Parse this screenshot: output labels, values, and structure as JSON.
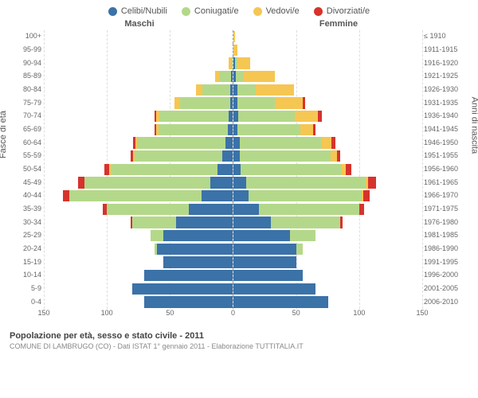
{
  "legend": [
    {
      "label": "Celibi/Nubili",
      "color": "#3b72a8"
    },
    {
      "label": "Coniugati/e",
      "color": "#b4d88a"
    },
    {
      "label": "Vedovi/e",
      "color": "#f6c653"
    },
    {
      "label": "Divorziati/e",
      "color": "#d6332c"
    }
  ],
  "header_m": "Maschi",
  "header_f": "Femmine",
  "ylabel_left": "Fasce di età",
  "ylabel_right": "Anni di nascita",
  "xmax": 150,
  "xticks": [
    150,
    100,
    50,
    0,
    50,
    100,
    150
  ],
  "colors": {
    "s": "#3b72a8",
    "m": "#b4d88a",
    "w": "#f6c653",
    "d": "#d6332c"
  },
  "footer1": "Popolazione per età, sesso e stato civile - 2011",
  "footer2": "COMUNE DI LAMBRUGO (CO) - Dati ISTAT 1° gennaio 2011 - Elaborazione TUTTITALIA.IT",
  "rows": [
    {
      "age": "100+",
      "year": "≤ 1910",
      "M": {
        "s": 0,
        "m": 0,
        "w": 0,
        "d": 0
      },
      "F": {
        "s": 0,
        "m": 0,
        "w": 1,
        "d": 0
      }
    },
    {
      "age": "95-99",
      "year": "1911-1915",
      "M": {
        "s": 0,
        "m": 0,
        "w": 0,
        "d": 0
      },
      "F": {
        "s": 0,
        "m": 0,
        "w": 3,
        "d": 0
      }
    },
    {
      "age": "90-94",
      "year": "1916-1920",
      "M": {
        "s": 0,
        "m": 1,
        "w": 2,
        "d": 0
      },
      "F": {
        "s": 1,
        "m": 2,
        "w": 10,
        "d": 0
      }
    },
    {
      "age": "85-89",
      "year": "1921-1925",
      "M": {
        "s": 1,
        "m": 10,
        "w": 3,
        "d": 0
      },
      "F": {
        "s": 2,
        "m": 6,
        "w": 25,
        "d": 0
      }
    },
    {
      "age": "80-84",
      "year": "1926-1930",
      "M": {
        "s": 2,
        "m": 22,
        "w": 5,
        "d": 0
      },
      "F": {
        "s": 3,
        "m": 15,
        "w": 30,
        "d": 0
      }
    },
    {
      "age": "75-79",
      "year": "1931-1935",
      "M": {
        "s": 2,
        "m": 40,
        "w": 4,
        "d": 0
      },
      "F": {
        "s": 3,
        "m": 30,
        "w": 22,
        "d": 2
      }
    },
    {
      "age": "70-74",
      "year": "1936-1940",
      "M": {
        "s": 3,
        "m": 55,
        "w": 3,
        "d": 1
      },
      "F": {
        "s": 4,
        "m": 45,
        "w": 18,
        "d": 3
      }
    },
    {
      "age": "65-69",
      "year": "1941-1945",
      "M": {
        "s": 4,
        "m": 55,
        "w": 2,
        "d": 1
      },
      "F": {
        "s": 3,
        "m": 50,
        "w": 10,
        "d": 2
      }
    },
    {
      "age": "60-64",
      "year": "1946-1950",
      "M": {
        "s": 6,
        "m": 70,
        "w": 1,
        "d": 2
      },
      "F": {
        "s": 5,
        "m": 65,
        "w": 8,
        "d": 3
      }
    },
    {
      "age": "55-59",
      "year": "1951-1955",
      "M": {
        "s": 8,
        "m": 70,
        "w": 1,
        "d": 2
      },
      "F": {
        "s": 5,
        "m": 72,
        "w": 5,
        "d": 3
      }
    },
    {
      "age": "50-54",
      "year": "1956-1960",
      "M": {
        "s": 12,
        "m": 85,
        "w": 1,
        "d": 4
      },
      "F": {
        "s": 6,
        "m": 80,
        "w": 3,
        "d": 5
      }
    },
    {
      "age": "45-49",
      "year": "1961-1965",
      "M": {
        "s": 18,
        "m": 100,
        "w": 0,
        "d": 5
      },
      "F": {
        "s": 10,
        "m": 95,
        "w": 2,
        "d": 6
      }
    },
    {
      "age": "40-44",
      "year": "1966-1970",
      "M": {
        "s": 25,
        "m": 105,
        "w": 0,
        "d": 5
      },
      "F": {
        "s": 12,
        "m": 90,
        "w": 1,
        "d": 5
      }
    },
    {
      "age": "35-39",
      "year": "1971-1975",
      "M": {
        "s": 35,
        "m": 65,
        "w": 0,
        "d": 3
      },
      "F": {
        "s": 20,
        "m": 80,
        "w": 0,
        "d": 4
      }
    },
    {
      "age": "30-34",
      "year": "1976-1980",
      "M": {
        "s": 45,
        "m": 35,
        "w": 0,
        "d": 1
      },
      "F": {
        "s": 30,
        "m": 55,
        "w": 0,
        "d": 2
      }
    },
    {
      "age": "25-29",
      "year": "1981-1985",
      "M": {
        "s": 55,
        "m": 10,
        "w": 0,
        "d": 0
      },
      "F": {
        "s": 45,
        "m": 20,
        "w": 0,
        "d": 0
      }
    },
    {
      "age": "20-24",
      "year": "1986-1990",
      "M": {
        "s": 60,
        "m": 2,
        "w": 0,
        "d": 0
      },
      "F": {
        "s": 50,
        "m": 5,
        "w": 0,
        "d": 0
      }
    },
    {
      "age": "15-19",
      "year": "1991-1995",
      "M": {
        "s": 55,
        "m": 0,
        "w": 0,
        "d": 0
      },
      "F": {
        "s": 50,
        "m": 0,
        "w": 0,
        "d": 0
      }
    },
    {
      "age": "10-14",
      "year": "1996-2000",
      "M": {
        "s": 70,
        "m": 0,
        "w": 0,
        "d": 0
      },
      "F": {
        "s": 55,
        "m": 0,
        "w": 0,
        "d": 0
      }
    },
    {
      "age": "5-9",
      "year": "2001-2005",
      "M": {
        "s": 80,
        "m": 0,
        "w": 0,
        "d": 0
      },
      "F": {
        "s": 65,
        "m": 0,
        "w": 0,
        "d": 0
      }
    },
    {
      "age": "0-4",
      "year": "2006-2010",
      "M": {
        "s": 70,
        "m": 0,
        "w": 0,
        "d": 0
      },
      "F": {
        "s": 75,
        "m": 0,
        "w": 0,
        "d": 0
      }
    }
  ]
}
